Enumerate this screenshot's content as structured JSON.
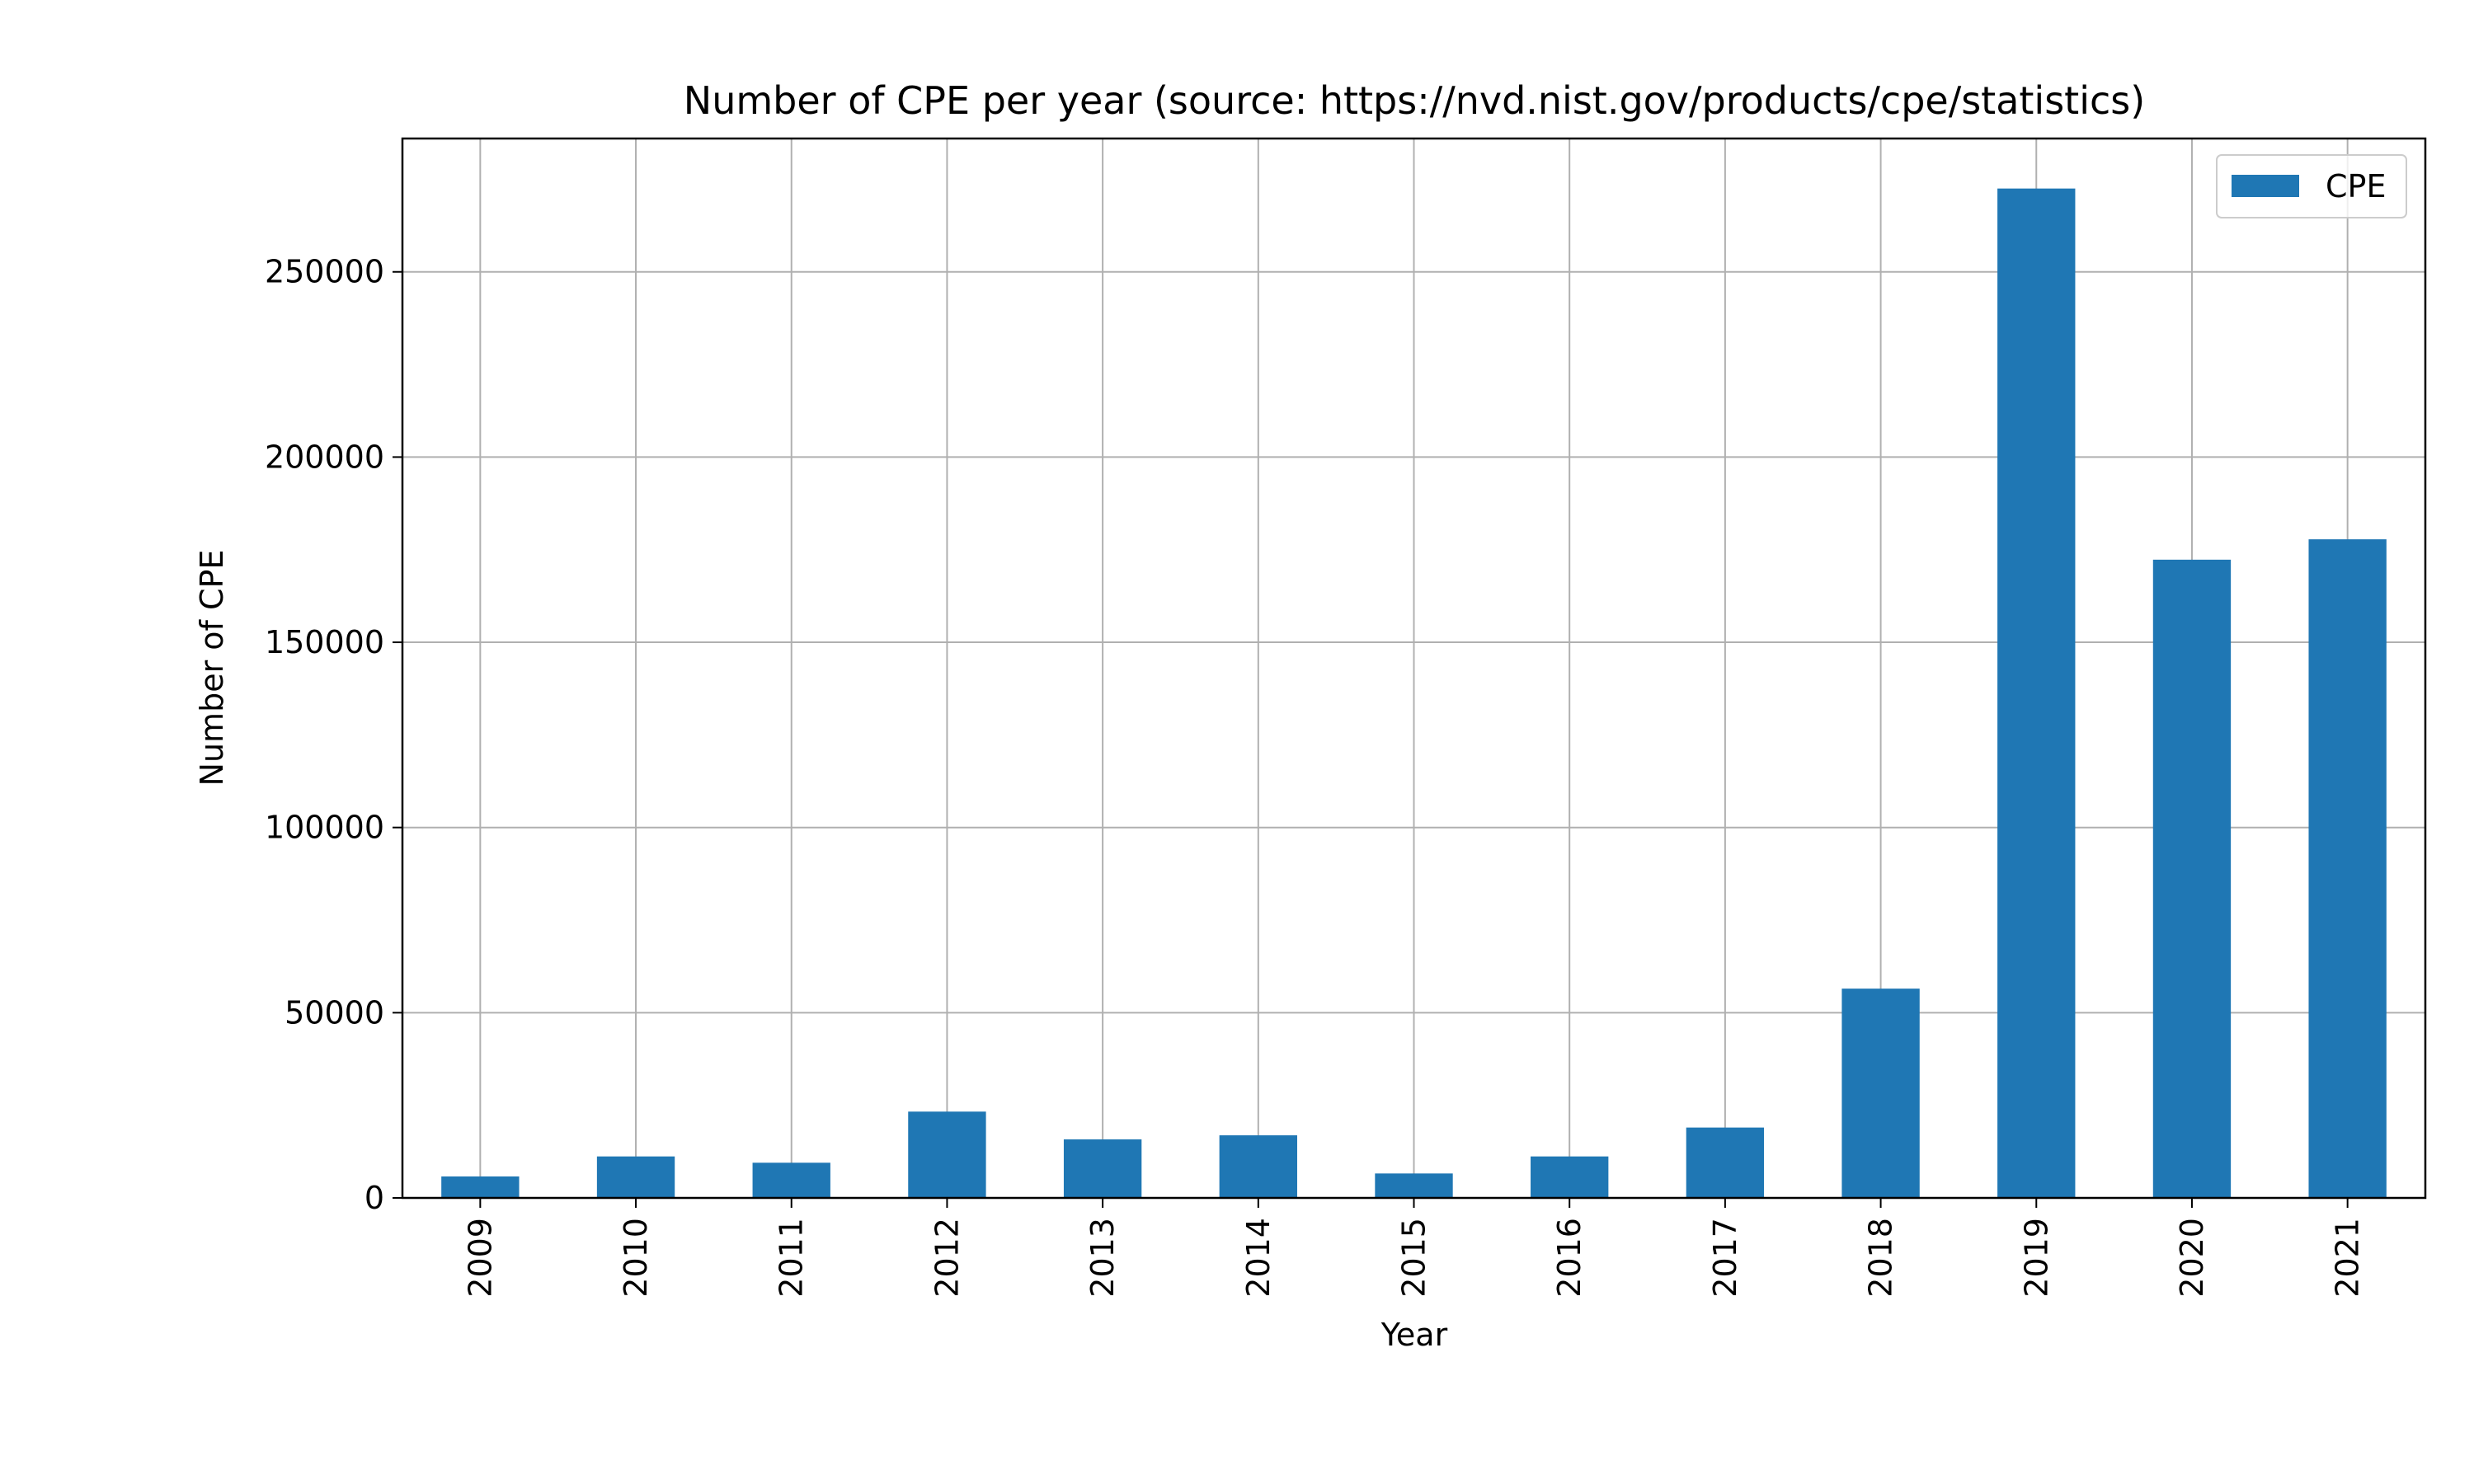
{
  "chart_data": {
    "type": "bar",
    "title": "Number of CPE per year (source: https://nvd.nist.gov/products/cpe/statistics)",
    "xlabel": "Year",
    "ylabel": "Number of CPE",
    "categories": [
      "2009",
      "2010",
      "2011",
      "2012",
      "2013",
      "2014",
      "2015",
      "2016",
      "2017",
      "2018",
      "2019",
      "2020",
      "2021"
    ],
    "series": [
      {
        "name": "CPE",
        "color": "#1f77b4",
        "values": [
          5800,
          11200,
          9500,
          23300,
          15800,
          16900,
          6600,
          11200,
          19000,
          56500,
          272500,
          172300,
          177800
        ]
      }
    ],
    "ylim": [
      0,
      286000
    ],
    "yticks": [
      0,
      50000,
      100000,
      150000,
      200000,
      250000
    ],
    "ytick_labels": [
      "0",
      "50000",
      "100000",
      "150000",
      "200000",
      "250000"
    ],
    "grid": true,
    "legend_position": "top-right",
    "x_tick_rotation": "vertical"
  }
}
